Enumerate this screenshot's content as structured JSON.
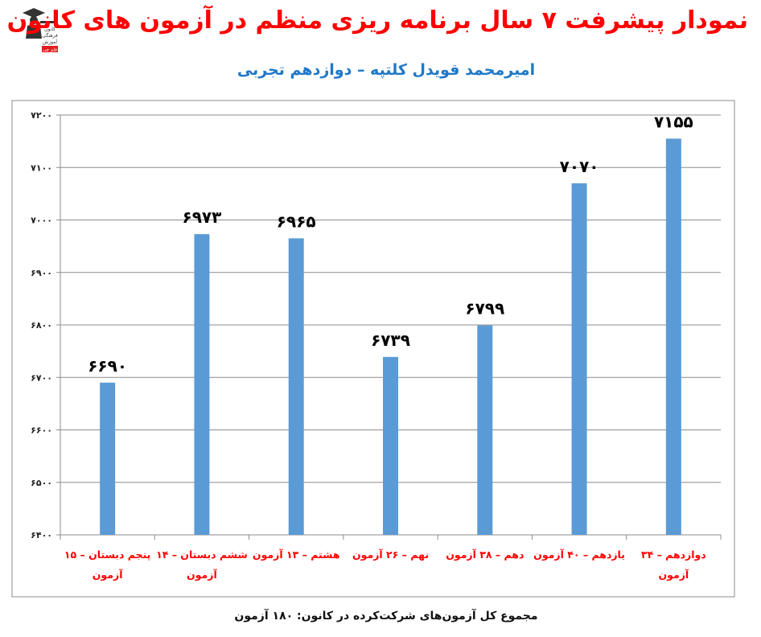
{
  "title": "نمودار پیشرفت ۷ سال برنامه ریزی منظم در آزمون های کانون",
  "subtitle": "امیرمحمد قویدل کلتپه – دوازدهم تجربی",
  "footer": "مجموع کل آزمون‌های شرکت‌کرده در کانون:  ۱۸۰ آزمون",
  "logo": {
    "icon": "graduate-figure-icon",
    "text_lines": [
      "کانون",
      "فرهنگی",
      "آموزش"
    ],
    "tag": "قلم چی",
    "tag_color": "#e02020"
  },
  "chart_data": {
    "type": "bar",
    "categories": [
      "پنجم دبستان – ۱۵ آزمون",
      "ششم دبستان – ۱۴ آزمون",
      "هشتم – ۱۳ آزمون",
      "نهم – ۲۶ آزمون",
      "دهم – ۳۸ آزمون",
      "یازدهم – ۴۰ آزمون",
      "دوازدهم – ۳۴ آزمون"
    ],
    "values": [
      6690,
      6973,
      6965,
      6739,
      6799,
      7070,
      7155
    ],
    "data_labels": [
      "۶۶۹۰",
      "۶۹۷۳",
      "۶۹۶۵",
      "۶۷۳۹",
      "۶۷۹۹",
      "۷۰۷۰",
      "۷۱۵۵"
    ],
    "ylim": [
      6400,
      7200
    ],
    "yticks": [
      6400,
      6500,
      6600,
      6700,
      6800,
      6900,
      7000,
      7100,
      7200
    ],
    "ytick_labels": [
      "۶۴۰۰",
      "۶۵۰۰",
      "۶۶۰۰",
      "۶۷۰۰",
      "۶۸۰۰",
      "۶۹۰۰",
      "۷۰۰۰",
      "۷۱۰۰",
      "۷۲۰۰"
    ],
    "grid": true,
    "legend": "none",
    "bar_color": "#5b9bd5",
    "category_label_color": "#ff0000"
  }
}
